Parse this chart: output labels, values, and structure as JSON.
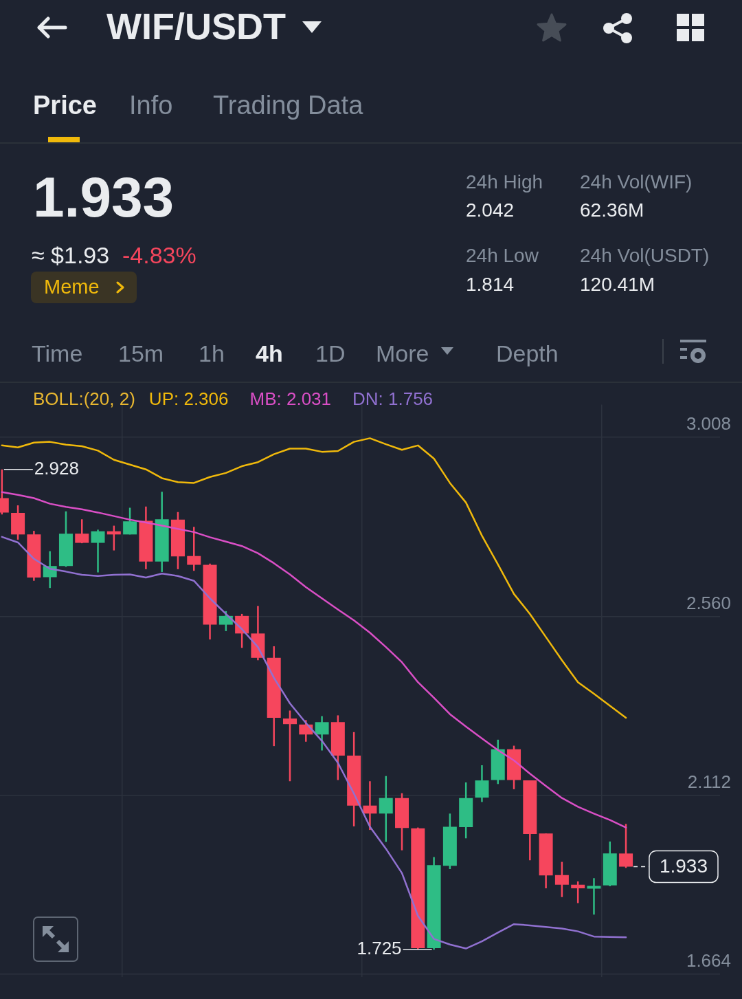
{
  "chart_data": {
    "type": "candlestick",
    "title": "WIF/USDT",
    "categories": [
      null,
      null,
      null,
      null,
      null,
      null,
      null,
      null,
      null,
      null,
      null,
      null,
      null,
      null,
      null,
      null,
      null,
      null,
      null,
      null,
      null,
      null,
      null,
      null,
      null,
      null,
      null,
      null,
      null,
      null,
      null,
      null,
      null,
      null,
      null,
      null,
      null,
      null,
      null,
      null
    ],
    "ohlc": [
      [
        2.856,
        2.928,
        2.815,
        2.82
      ],
      [
        2.819,
        2.838,
        2.752,
        2.765
      ],
      [
        2.765,
        2.774,
        2.649,
        2.657
      ],
      [
        2.658,
        2.723,
        2.631,
        2.686
      ],
      [
        2.686,
        2.823,
        2.684,
        2.767
      ],
      [
        2.767,
        2.803,
        2.743,
        2.744
      ],
      [
        2.744,
        2.777,
        2.67,
        2.773
      ],
      [
        2.773,
        2.787,
        2.725,
        2.765
      ],
      [
        2.765,
        2.832,
        2.765,
        2.798
      ],
      [
        2.799,
        2.835,
        2.678,
        2.697
      ],
      [
        2.697,
        2.872,
        2.671,
        2.803
      ],
      [
        2.802,
        2.821,
        2.678,
        2.71
      ],
      [
        2.711,
        2.784,
        2.674,
        2.689
      ],
      [
        2.689,
        2.692,
        2.502,
        2.539
      ],
      [
        2.539,
        2.573,
        2.523,
        2.561
      ],
      [
        2.561,
        2.566,
        2.481,
        2.517
      ],
      [
        2.517,
        2.586,
        2.45,
        2.456
      ],
      [
        2.456,
        2.485,
        2.235,
        2.306
      ],
      [
        2.304,
        2.324,
        2.147,
        2.29
      ],
      [
        2.289,
        2.3,
        2.246,
        2.264
      ],
      [
        2.264,
        2.31,
        2.224,
        2.295
      ],
      [
        2.295,
        2.312,
        2.15,
        2.211
      ],
      [
        2.211,
        2.27,
        2.034,
        2.086
      ],
      [
        2.086,
        2.147,
        2.025,
        2.066
      ],
      [
        2.066,
        2.16,
        1.995,
        2.105
      ],
      [
        2.105,
        2.117,
        1.974,
        2.03
      ],
      [
        2.029,
        2.031,
        1.727,
        1.729
      ],
      [
        1.729,
        1.957,
        1.725,
        1.937
      ],
      [
        1.935,
        2.066,
        1.927,
        2.033
      ],
      [
        2.032,
        2.144,
        2.004,
        2.105
      ],
      [
        2.106,
        2.187,
        2.095,
        2.149
      ],
      [
        2.15,
        2.251,
        2.14,
        2.227
      ],
      [
        2.227,
        2.236,
        2.127,
        2.15
      ],
      [
        2.149,
        2.149,
        1.949,
        2.015
      ],
      [
        2.016,
        2.016,
        1.879,
        1.911
      ],
      [
        1.912,
        1.945,
        1.857,
        1.888
      ],
      [
        1.888,
        1.896,
        1.842,
        1.879
      ],
      [
        1.878,
        1.904,
        1.813,
        1.885
      ],
      [
        1.886,
        1.996,
        1.884,
        1.966
      ],
      [
        1.966,
        2.04,
        1.93,
        1.933
      ]
    ],
    "colors": [
      "#f6465d",
      "#f6465d",
      "#f6465d",
      "#2ebd85",
      "#2ebd85",
      "#f6465d",
      "#2ebd85",
      "#f6465d",
      "#2ebd85",
      "#f6465d",
      "#2ebd85",
      "#f6465d",
      "#f6465d",
      "#f6465d",
      "#2ebd85",
      "#f6465d",
      "#f6465d",
      "#f6465d",
      "#f6465d",
      "#f6465d",
      "#2ebd85",
      "#f6465d",
      "#f6465d",
      "#f6465d",
      "#2ebd85",
      "#f6465d",
      "#f6465d",
      "#2ebd85",
      "#2ebd85",
      "#2ebd85",
      "#2ebd85",
      "#2ebd85",
      "#f6465d",
      "#f6465d",
      "#f6465d",
      "#f6465d",
      "#f6465d",
      "#2ebd85",
      "#2ebd85",
      "#f6465d"
    ],
    "series": [
      {
        "type": "line",
        "name": "UP: 2.306",
        "color": "#f0b90b",
        "values": [
          2.988,
          2.983,
          2.995,
          2.997,
          2.99,
          2.986,
          2.975,
          2.952,
          2.94,
          2.928,
          2.906,
          2.896,
          2.894,
          2.909,
          2.919,
          2.936,
          2.946,
          2.966,
          2.98,
          2.98,
          2.972,
          2.974,
          2.997,
          3.006,
          2.991,
          2.977,
          2.988,
          2.955,
          2.894,
          2.845,
          2.762,
          2.69,
          2.616,
          2.566,
          2.508,
          2.45,
          2.395,
          2.366,
          2.336,
          2.306
        ]
      },
      {
        "type": "line",
        "name": "MB: 2.031",
        "color": "#da4fc6",
        "values": [
          2.871,
          2.864,
          2.856,
          2.842,
          2.834,
          2.828,
          2.82,
          2.811,
          2.802,
          2.795,
          2.787,
          2.779,
          2.771,
          2.758,
          2.747,
          2.736,
          2.718,
          2.693,
          2.665,
          2.633,
          2.605,
          2.577,
          2.55,
          2.519,
          2.483,
          2.445,
          2.395,
          2.356,
          2.315,
          2.284,
          2.254,
          2.225,
          2.199,
          2.166,
          2.135,
          2.105,
          2.083,
          2.066,
          2.05,
          2.031
        ]
      },
      {
        "type": "line",
        "name": "DN: 1.756",
        "color": "#9171d1",
        "values": [
          2.759,
          2.745,
          2.704,
          2.679,
          2.672,
          2.664,
          2.661,
          2.664,
          2.665,
          2.657,
          2.667,
          2.661,
          2.649,
          2.605,
          2.566,
          2.528,
          2.483,
          2.406,
          2.342,
          2.293,
          2.248,
          2.193,
          2.116,
          2.033,
          1.978,
          1.917,
          1.81,
          1.752,
          1.738,
          1.728,
          1.746,
          1.768,
          1.789,
          1.786,
          1.782,
          1.778,
          1.771,
          1.758,
          1.757,
          1.756
        ]
      }
    ],
    "ylim": [
      1.656,
      3.09
    ],
    "yticks": [
      3.008,
      {
        "value": 2.56,
        "label": "2.560"
      },
      2.112,
      1.664
    ],
    "grid": true,
    "tick_labels": "y",
    "legend": "top left",
    "legend_title": "BOLL:(20, 2)",
    "annotations": [
      "Price",
      "Info",
      "Trading Data",
      "1.933",
      "≈ $1.93",
      "-4.83%",
      "Meme",
      "24h High",
      "2.042",
      "24h Vol(WIF)",
      "62.36M",
      "24h Low",
      "1.814",
      "24h Vol(USDT)",
      "120.41M",
      "Time",
      "15m",
      "1h",
      "4h",
      "1D",
      "More",
      "Depth",
      "2.928",
      "1.725",
      "1.933"
    ]
  }
}
